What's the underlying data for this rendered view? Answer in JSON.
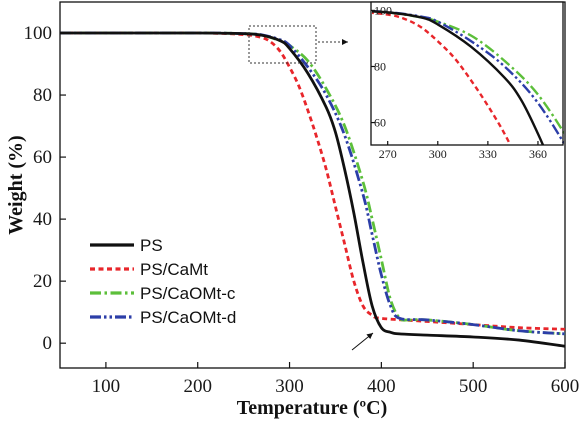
{
  "chart_data": {
    "type": "line",
    "title": "",
    "xlabel": "Temperature (ºC)",
    "ylabel": "Weight (%)",
    "xlim": [
      50,
      600
    ],
    "ylim": [
      -8,
      110
    ],
    "x_ticks": [
      100,
      200,
      300,
      400,
      500,
      600
    ],
    "y_ticks": [
      0,
      20,
      40,
      60,
      80,
      100
    ],
    "legend_position": "bottom-left",
    "colors": {
      "PS": "#111111",
      "PS/CaMt": "#e8262b",
      "PS/CaOMt-c": "#5cbf3a",
      "PS/CaOMt-d": "#2c3ea8"
    },
    "series": [
      {
        "name": "PS",
        "style": "solid",
        "x": [
          50,
          200,
          250,
          270,
          290,
          300,
          320,
          340,
          350,
          360,
          370,
          380,
          390,
          400,
          410,
          420,
          450,
          500,
          550,
          600
        ],
        "y": [
          100,
          100,
          99.8,
          99.3,
          97.5,
          95,
          87,
          76,
          68,
          56,
          42,
          26,
          12,
          5,
          3.5,
          3,
          2.6,
          2,
          1,
          -1
        ]
      },
      {
        "name": "PS/CaMt",
        "style": "dotted",
        "x": [
          50,
          200,
          250,
          270,
          280,
          290,
          300,
          310,
          320,
          330,
          340,
          350,
          360,
          370,
          380,
          390,
          400,
          450,
          500,
          550,
          600
        ],
        "y": [
          100,
          100,
          99.5,
          98.5,
          97,
          94,
          89,
          83,
          75,
          66,
          56,
          44,
          32,
          20,
          12,
          9,
          8,
          7,
          6,
          5,
          4.5
        ]
      },
      {
        "name": "PS/CaOMt-c",
        "style": "dash-dot",
        "x": [
          50,
          200,
          250,
          270,
          290,
          300,
          320,
          340,
          360,
          380,
          390,
          400,
          410,
          420,
          430,
          450,
          500,
          550,
          600
        ],
        "y": [
          100,
          100,
          99.8,
          99.3,
          97.5,
          96,
          91,
          82,
          70,
          52,
          40,
          27,
          14,
          8,
          7.5,
          7.5,
          6,
          4,
          3
        ]
      },
      {
        "name": "PS/CaOMt-d",
        "style": "dash-dot-dot",
        "x": [
          50,
          200,
          250,
          270,
          290,
          300,
          320,
          340,
          360,
          380,
          390,
          400,
          410,
          420,
          450,
          500,
          550,
          600
        ],
        "y": [
          100,
          100,
          99.8,
          99.4,
          97.8,
          96,
          89,
          80,
          67,
          48,
          35,
          22,
          12,
          8,
          7.5,
          6,
          4,
          3
        ]
      }
    ],
    "annotations": [
      "dashed box highlights region 255-315 °C, 93-103 %, magnified in inset"
    ],
    "inset": {
      "xlim": [
        260,
        375
      ],
      "ylim": [
        52,
        103
      ],
      "x_ticks": [
        270,
        300,
        330,
        360
      ],
      "y_ticks": [
        60,
        80,
        100
      ]
    }
  }
}
